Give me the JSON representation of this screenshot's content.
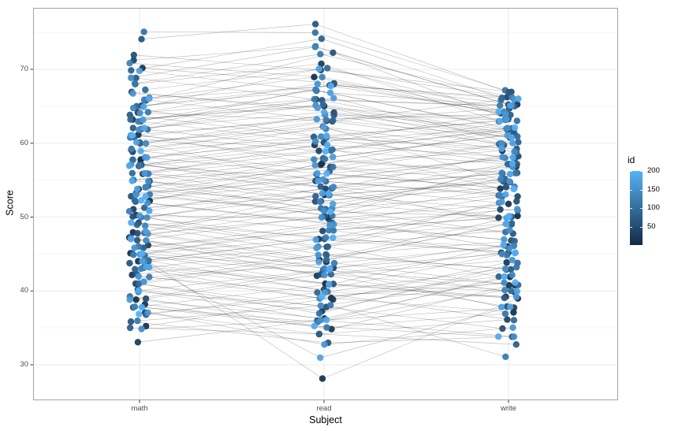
{
  "figure": {
    "background": "#FFFFFF",
    "panel": {
      "border_color": "#A9A9A9",
      "grid_major_color": "#EBEBEB",
      "grid_minor_color": "#F4F4F4"
    },
    "x_axis": {
      "title": "Subject",
      "categories": [
        "math",
        "read",
        "write"
      ]
    },
    "y_axis": {
      "title": "Score",
      "tick_labels": [
        "30",
        "40",
        "50",
        "60",
        "70"
      ]
    },
    "legend": {
      "title": "id",
      "tick_labels": [
        "200",
        "150",
        "100",
        "50"
      ],
      "gradient_high": "#56B1F7",
      "gradient_low": "#132B43"
    }
  },
  "chart_data": {
    "type": "scatter",
    "subtype": "parallel-coordinates: per-id lines across categories with jittered points",
    "title": "",
    "xlabel": "Subject",
    "ylabel": "Score",
    "categories": [
      "math",
      "read",
      "write"
    ],
    "y_ticks": [
      30,
      40,
      50,
      60,
      70
    ],
    "y_minor_ticks": [
      35,
      45,
      55,
      65,
      75
    ],
    "ylim": [
      25.6,
      78.4
    ],
    "grid": true,
    "legend": {
      "title": "id",
      "position": "right",
      "type": "colorbar",
      "ticks": [
        50,
        100,
        150,
        200
      ],
      "limits": [
        1,
        200
      ]
    },
    "color_scale": {
      "variable": "id",
      "low": "#132B43",
      "high": "#56B1F7"
    },
    "line_style": {
      "color": "#000000",
      "opacity": 0.3,
      "width": 0.55
    },
    "point_style": {
      "radius": 4.2,
      "opacity": 0.95
    },
    "columns": [
      "id",
      "math",
      "read",
      "write"
    ],
    "records": [
      [
        2,
        45,
        41,
        39
      ],
      [
        3,
        58,
        62,
        55
      ],
      [
        4,
        41,
        44,
        50
      ],
      [
        5,
        54,
        50,
        57
      ],
      [
        7,
        63,
        65,
        61
      ],
      [
        8,
        39,
        36,
        42
      ],
      [
        9,
        57,
        53,
        55
      ],
      [
        10,
        66,
        69,
        64
      ],
      [
        12,
        48,
        44,
        41
      ],
      [
        13,
        52,
        57,
        59
      ],
      [
        14,
        35,
        39,
        37
      ],
      [
        15,
        61,
        57,
        62
      ],
      [
        17,
        44,
        47,
        46
      ],
      [
        18,
        70,
        68,
        65
      ],
      [
        19,
        50,
        50,
        52
      ],
      [
        20,
        38,
        35,
        41
      ],
      [
        22,
        56,
        60,
        54
      ],
      [
        23,
        64,
        63,
        60
      ],
      [
        24,
        42,
        39,
        44
      ],
      [
        25,
        53,
        55,
        57
      ],
      [
        27,
        47,
        42,
        45
      ],
      [
        28,
        59,
        63,
        65
      ],
      [
        29,
        33,
        36,
        38
      ],
      [
        30,
        55,
        52,
        50
      ],
      [
        32,
        68,
        71,
        63
      ],
      [
        33,
        40,
        37,
        43
      ],
      [
        34,
        51,
        54,
        56
      ],
      [
        35,
        62,
        66,
        61
      ],
      [
        37,
        46,
        43,
        40
      ],
      [
        38,
        57,
        59,
        62
      ],
      [
        39,
        37,
        34,
        36
      ],
      [
        40,
        65,
        68,
        66
      ],
      [
        42,
        49,
        46,
        51
      ],
      [
        43,
        71,
        73,
        65
      ],
      [
        44,
        43,
        40,
        45
      ],
      [
        45,
        54,
        57,
        53
      ],
      [
        47,
        60,
        55,
        58
      ],
      [
        48,
        45,
        48,
        50
      ],
      [
        49,
        67,
        64,
        62
      ],
      [
        50,
        52,
        49,
        47
      ],
      [
        52,
        39,
        42,
        38
      ],
      [
        53,
        63,
        60,
        64
      ],
      [
        54,
        48,
        52,
        54
      ],
      [
        55,
        56,
        54,
        49
      ],
      [
        57,
        72,
        70,
        67
      ],
      [
        58,
        41,
        38,
        35
      ],
      [
        59,
        58,
        61,
        59
      ],
      [
        60,
        50,
        47,
        52
      ],
      [
        62,
        66,
        72,
        63
      ],
      [
        63,
        44,
        41,
        46
      ],
      [
        64,
        53,
        56,
        58
      ],
      [
        65,
        36,
        33,
        34
      ],
      [
        67,
        61,
        64,
        60
      ],
      [
        68,
        47,
        50,
        48
      ],
      [
        69,
        69,
        66,
        65
      ],
      [
        70,
        42,
        45,
        43
      ],
      [
        72,
        55,
        58,
        61
      ],
      [
        73,
        64,
        61,
        57
      ],
      [
        74,
        38,
        41,
        39
      ],
      [
        75,
        57,
        54,
        56
      ],
      [
        77,
        46,
        49,
        53
      ],
      [
        78,
        62,
        68,
        64
      ],
      [
        79,
        35,
        34,
        33
      ],
      [
        80,
        51,
        53,
        55
      ],
      [
        82,
        70,
        74,
        66
      ],
      [
        83,
        43,
        46,
        42
      ],
      [
        84,
        59,
        56,
        60
      ],
      [
        85,
        49,
        45,
        47
      ],
      [
        87,
        65,
        67,
        62
      ],
      [
        88,
        40,
        43,
        41
      ],
      [
        89,
        54,
        51,
        55
      ],
      [
        90,
        37,
        40,
        36
      ],
      [
        92,
        60,
        63,
        66
      ],
      [
        93,
        48,
        44,
        49
      ],
      [
        94,
        67,
        70,
        64
      ],
      [
        95,
        45,
        42,
        40
      ],
      [
        97,
        56,
        59,
        57
      ],
      [
        98,
        63,
        65,
        61
      ],
      [
        99,
        41,
        37,
        44
      ],
      [
        100,
        52,
        55,
        53
      ],
      [
        102,
        47,
        51,
        48
      ],
      [
        103,
        58,
        54,
        59
      ],
      [
        16,
        44,
        28,
        39
      ],
      [
        105,
        62,
        59,
        63
      ],
      [
        107,
        50,
        53,
        51
      ],
      [
        108,
        75,
        75,
        67
      ],
      [
        109,
        44,
        40,
        43
      ],
      [
        110,
        55,
        57,
        60
      ],
      [
        112,
        61,
        58,
        56
      ],
      [
        113,
        39,
        35,
        37
      ],
      [
        114,
        57,
        61,
        63
      ],
      [
        115,
        46,
        48,
        45
      ],
      [
        117,
        64,
        66,
        65
      ],
      [
        118,
        36,
        38,
        31
      ],
      [
        119,
        53,
        50,
        54
      ],
      [
        120,
        68,
        72,
        66
      ],
      [
        122,
        42,
        44,
        46
      ],
      [
        123,
        59,
        62,
        58
      ],
      [
        124,
        51,
        48,
        50
      ],
      [
        125,
        66,
        63,
        61
      ],
      [
        127,
        45,
        47,
        49
      ],
      [
        128,
        56,
        52,
        55
      ],
      [
        129,
        38,
        36,
        40
      ],
      [
        130,
        63,
        67,
        62
      ],
      [
        132,
        49,
        51,
        53
      ],
      [
        133,
        71,
        69,
        64
      ],
      [
        134,
        43,
        39,
        42
      ],
      [
        135,
        54,
        58,
        56
      ],
      [
        137,
        60,
        64,
        63
      ],
      [
        138,
        47,
        43,
        45
      ],
      [
        139,
        65,
        61,
        59
      ],
      [
        140,
        40,
        38,
        41
      ],
      [
        142,
        58,
        60,
        62
      ],
      [
        143,
        50,
        54,
        52
      ],
      [
        144,
        69,
        73,
        65
      ],
      [
        145,
        44,
        46,
        48
      ],
      [
        147,
        55,
        51,
        57
      ],
      [
        148,
        35,
        36,
        34
      ],
      [
        149,
        62,
        65,
        60
      ],
      [
        150,
        48,
        50,
        46
      ],
      [
        152,
        57,
        55,
        58
      ],
      [
        153,
        41,
        45,
        43
      ],
      [
        154,
        64,
        68,
        66
      ],
      [
        155,
        52,
        49,
        51
      ],
      [
        66,
        74,
        76,
        67
      ],
      [
        158,
        46,
        42,
        44
      ],
      [
        159,
        53,
        57,
        55
      ],
      [
        160,
        37,
        33,
        35
      ],
      [
        162,
        61,
        63,
        64
      ],
      [
        163,
        45,
        49,
        47
      ],
      [
        164,
        67,
        65,
        63
      ],
      [
        165,
        42,
        40,
        39
      ],
      [
        167,
        56,
        58,
        61
      ],
      [
        168,
        50,
        46,
        52
      ],
      [
        169,
        63,
        66,
        60
      ],
      [
        170,
        39,
        43,
        38
      ],
      [
        172,
        58,
        56,
        54
      ],
      [
        173,
        48,
        53,
        50
      ],
      [
        174,
        70,
        67,
        65
      ],
      [
        175,
        44,
        47,
        45
      ],
      [
        177,
        54,
        52,
        56
      ],
      [
        178,
        43,
        31,
        38
      ],
      [
        179,
        60,
        62,
        59
      ],
      [
        180,
        51,
        55,
        53
      ],
      [
        182,
        65,
        70,
        66
      ],
      [
        183,
        43,
        41,
        40
      ],
      [
        184,
        57,
        60,
        58
      ],
      [
        185,
        47,
        44,
        49
      ],
      [
        187,
        62,
        64,
        61
      ],
      [
        188,
        40,
        36,
        42
      ],
      [
        189,
        55,
        53,
        57
      ],
      [
        190,
        38,
        35,
        34
      ],
      [
        192,
        59,
        61,
        63
      ],
      [
        193,
        49,
        47,
        45
      ],
      [
        194,
        66,
        68,
        64
      ],
      [
        195,
        45,
        43,
        46
      ],
      [
        197,
        53,
        51,
        50
      ],
      [
        198,
        61,
        59,
        62
      ],
      [
        199,
        37,
        39,
        41
      ],
      [
        200,
        52,
        56,
        54
      ]
    ]
  }
}
